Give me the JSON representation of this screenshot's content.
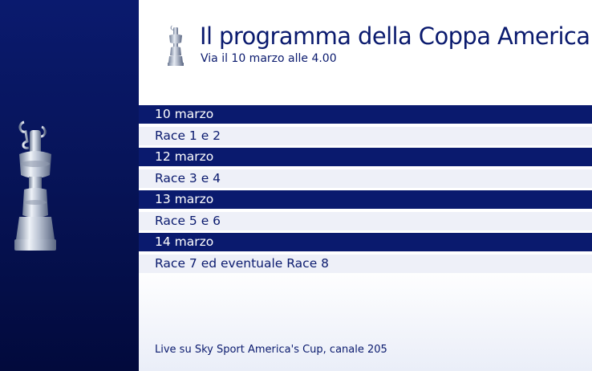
{
  "header": {
    "title": "Il programma della Coppa America",
    "subtitle": "Via il 10 marzo alle 4.00"
  },
  "schedule": [
    {
      "date": "10 marzo",
      "races": "Race 1 e 2"
    },
    {
      "date": "12 marzo",
      "races": "Race 3 e 4"
    },
    {
      "date": "13 marzo",
      "races": "Race 5 e 6"
    },
    {
      "date": "14 marzo",
      "races": "Race 7 ed eventuale Race 8"
    }
  ],
  "footer": {
    "text": "Live su Sky Sport America's Cup, canale 205"
  },
  "colors": {
    "navy": "#0a1a6e",
    "row_light": "#eef0f8"
  },
  "icons": {
    "trophy": "americas-cup-trophy-icon"
  }
}
